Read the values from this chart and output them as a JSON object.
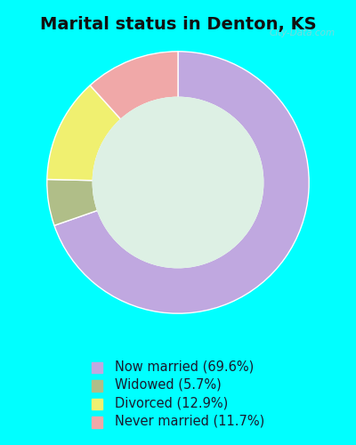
{
  "title": "Marital status in Denton, KS",
  "title_fontsize": 14,
  "background_cyan": "#00ffff",
  "background_chart": "#ddf0e4",
  "slices": [
    {
      "label": "Now married (69.6%)",
      "value": 69.6,
      "color": "#c0a8e0"
    },
    {
      "label": "Widowed (5.7%)",
      "value": 5.7,
      "color": "#b0be88"
    },
    {
      "label": "Divorced (12.9%)",
      "value": 12.9,
      "color": "#f0f070"
    },
    {
      "label": "Never married (11.7%)",
      "value": 11.7,
      "color": "#f0a8a8"
    }
  ],
  "donut_width": 0.35,
  "startangle": 90,
  "legend_fontsize": 10.5,
  "watermark": "City-Data.com"
}
